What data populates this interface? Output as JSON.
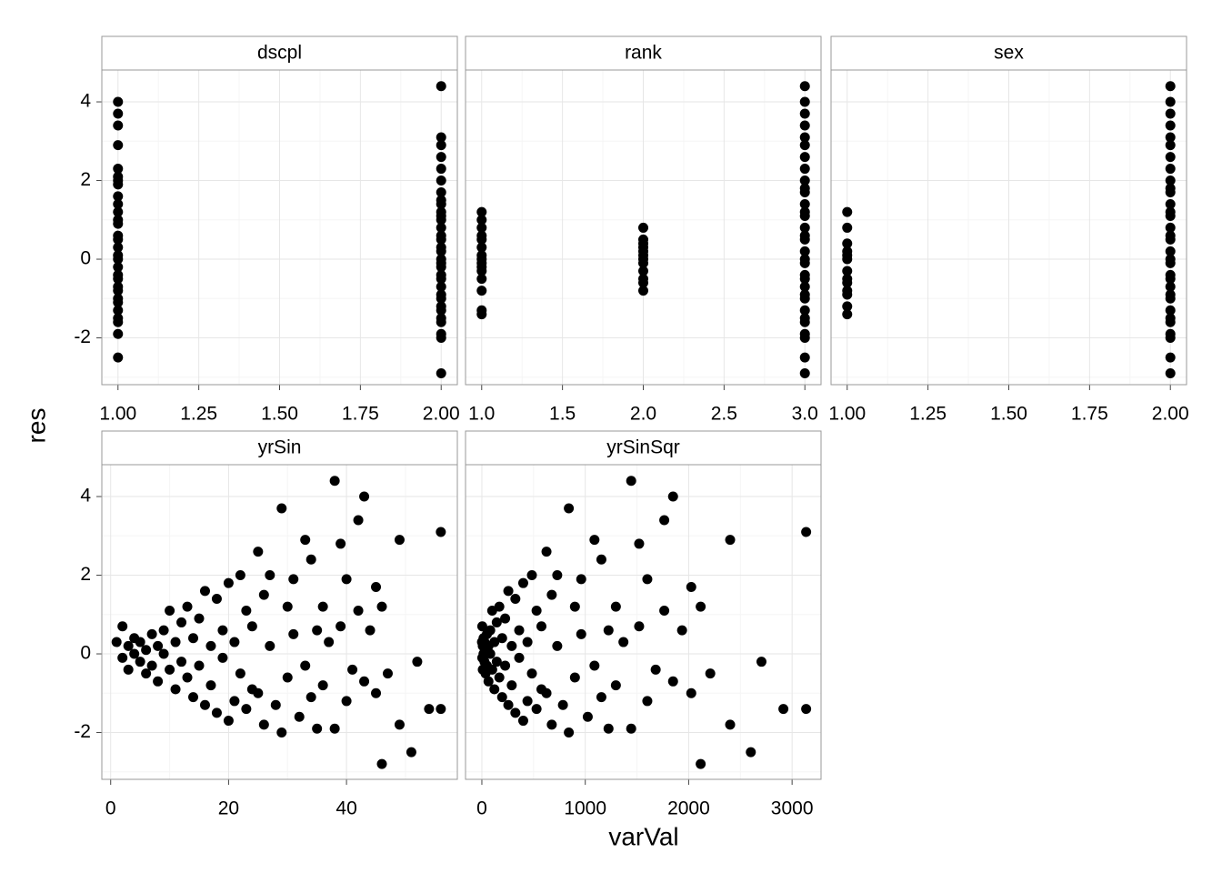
{
  "ylabel": "res",
  "xlabel": "varVal",
  "chart_data": [
    {
      "type": "scatter",
      "title": "dscpl",
      "color": "#000000",
      "grid": true,
      "xlim": [
        0.95,
        2.05
      ],
      "ylim": [
        -3.19,
        4.81
      ],
      "xticks": [
        {
          "value": 1,
          "label": "1.00"
        },
        1.25,
        {
          "value": 1.5,
          "label": "1.50"
        },
        1.75,
        {
          "value": 2,
          "label": "2.00"
        }
      ],
      "yticks": [
        -2,
        0,
        2,
        4
      ],
      "x": [
        1,
        1,
        1,
        1,
        1,
        1,
        1,
        1,
        1,
        1,
        1,
        1,
        1,
        1,
        1,
        1,
        1,
        1,
        1,
        1,
        1,
        1,
        1,
        1,
        1,
        1,
        1,
        1,
        1,
        1,
        2,
        2,
        2,
        2,
        2,
        2,
        2,
        2,
        2,
        2,
        2,
        2,
        2,
        2,
        2,
        2,
        2,
        2,
        2,
        2,
        2,
        2,
        2,
        2,
        2,
        2,
        2,
        2,
        2,
        2,
        2,
        2
      ],
      "y": [
        4.0,
        3.7,
        3.4,
        2.9,
        2.3,
        2.1,
        1.9,
        1.6,
        1.2,
        0.9,
        0.6,
        0.3,
        0,
        -0.2,
        -0.5,
        -0.8,
        -1.1,
        -1.3,
        -1.6,
        -1.9,
        -2.5,
        1.4,
        0.1,
        -0.4,
        -1.0,
        1.0,
        0.5,
        -0.7,
        2.0,
        -1.5,
        4.4,
        3.1,
        2.9,
        2.6,
        2.3,
        2.0,
        1.7,
        1.4,
        1.1,
        0.8,
        0.5,
        0.2,
        -0.1,
        -0.4,
        -0.7,
        -1.0,
        -1.3,
        -1.6,
        -1.9,
        -2.0,
        -2.9,
        1.2,
        0.3,
        -0.2,
        -0.9,
        1.5,
        0.6,
        -0.5,
        -1.5,
        0.0,
        -1.2,
        1.0
      ]
    },
    {
      "type": "scatter",
      "title": "rank",
      "color": "#000000",
      "grid": true,
      "xlim": [
        0.9,
        3.1
      ],
      "ylim": [
        -3.19,
        4.81
      ],
      "xticks": [
        {
          "value": 1,
          "label": "1.0"
        },
        1.5,
        {
          "value": 2,
          "label": "2.0"
        },
        2.5,
        {
          "value": 3,
          "label": "3.0"
        }
      ],
      "yticks": [
        -2,
        0,
        2,
        4
      ],
      "x": [
        1,
        1,
        1,
        1,
        1,
        1,
        1,
        1,
        1,
        1,
        1,
        1,
        1,
        1,
        1,
        2,
        2,
        2,
        2,
        2,
        2,
        2,
        2,
        2,
        2,
        2,
        2,
        3,
        3,
        3,
        3,
        3,
        3,
        3,
        3,
        3,
        3,
        3,
        3,
        3,
        3,
        3,
        3,
        3,
        3,
        3,
        3,
        3,
        3,
        3,
        3,
        3,
        3,
        3,
        3,
        3,
        3,
        3,
        3
      ],
      "y": [
        1.2,
        1.0,
        0.8,
        0.5,
        0.3,
        0.1,
        -0.1,
        -0.3,
        -0.5,
        -0.8,
        -1.3,
        -1.4,
        0.6,
        -0.2,
        0.0,
        0.8,
        0.5,
        0.3,
        0.1,
        -0.1,
        -0.3,
        -0.5,
        -0.8,
        0.2,
        -0.6,
        0.0,
        0.4,
        4.4,
        4.0,
        3.7,
        3.4,
        3.1,
        2.9,
        2.6,
        2.3,
        2.0,
        1.7,
        1.4,
        1.1,
        0.8,
        0.5,
        0.2,
        -0.1,
        -0.4,
        -0.7,
        -1.0,
        -1.3,
        -1.6,
        -1.9,
        -2.0,
        -2.5,
        -2.9,
        1.2,
        0.6,
        -0.5,
        -1.5,
        0.0,
        1.8,
        -0.9
      ]
    },
    {
      "type": "scatter",
      "title": "sex",
      "color": "#000000",
      "grid": true,
      "xlim": [
        0.95,
        2.05
      ],
      "ylim": [
        -3.19,
        4.81
      ],
      "xticks": [
        {
          "value": 1,
          "label": "1.00"
        },
        1.25,
        {
          "value": 1.5,
          "label": "1.50"
        },
        1.75,
        {
          "value": 2,
          "label": "2.00"
        }
      ],
      "yticks": [
        -2,
        0,
        2,
        4
      ],
      "x": [
        1,
        1,
        1,
        1,
        1,
        1,
        1,
        1,
        1,
        1,
        1,
        1,
        1,
        2,
        2,
        2,
        2,
        2,
        2,
        2,
        2,
        2,
        2,
        2,
        2,
        2,
        2,
        2,
        2,
        2,
        2,
        2,
        2,
        2,
        2,
        2,
        2,
        2,
        2,
        2,
        2,
        2,
        2,
        2,
        2
      ],
      "y": [
        1.2,
        0.8,
        0.4,
        0.2,
        0,
        -0.3,
        -0.5,
        -0.8,
        -0.9,
        -1.2,
        -1.4,
        0.1,
        -0.6,
        4.4,
        4.0,
        3.7,
        3.4,
        3.1,
        2.9,
        2.6,
        2.3,
        2.0,
        1.7,
        1.4,
        1.1,
        0.8,
        0.5,
        0.2,
        -0.1,
        -0.4,
        -0.7,
        -1.0,
        -1.3,
        -1.6,
        -1.9,
        -2.0,
        -2.5,
        -2.9,
        1.2,
        0.6,
        -0.5,
        -1.5,
        0.0,
        1.8,
        -0.9
      ]
    },
    {
      "type": "scatter",
      "title": "yrSin",
      "color": "#000000",
      "grid": true,
      "xlim": [
        -1.5,
        58.8
      ],
      "ylim": [
        -3.19,
        4.81
      ],
      "xticks": [
        0,
        20,
        40
      ],
      "yticks": [
        -2,
        0,
        2,
        4
      ],
      "x": [
        1,
        2,
        2,
        3,
        3,
        4,
        4,
        5,
        5,
        6,
        6,
        7,
        7,
        8,
        8,
        9,
        9,
        10,
        10,
        11,
        11,
        12,
        12,
        13,
        13,
        14,
        14,
        15,
        15,
        16,
        16,
        17,
        17,
        18,
        18,
        19,
        19,
        20,
        20,
        21,
        21,
        22,
        22,
        23,
        23,
        24,
        24,
        25,
        25,
        26,
        26,
        27,
        27,
        28,
        29,
        29,
        30,
        30,
        31,
        31,
        32,
        33,
        33,
        34,
        34,
        35,
        35,
        36,
        36,
        37,
        38,
        38,
        39,
        39,
        40,
        40,
        41,
        42,
        42,
        43,
        43,
        44,
        45,
        45,
        46,
        46,
        47,
        49,
        49,
        51,
        52,
        54,
        56,
        56
      ],
      "y": [
        0.3,
        -0.1,
        0.7,
        0.2,
        -0.4,
        0.4,
        0,
        -0.2,
        0.3,
        0.1,
        -0.5,
        0.5,
        -0.3,
        0.2,
        -0.7,
        0.6,
        0,
        1.1,
        -0.4,
        0.3,
        -0.9,
        0.8,
        -0.2,
        1.2,
        -0.6,
        0.4,
        -1.1,
        0.9,
        -0.3,
        1.6,
        -1.3,
        0.2,
        -0.8,
        1.4,
        -1.5,
        0.6,
        -0.1,
        1.8,
        -1.7,
        0.3,
        -1.2,
        2.0,
        -0.5,
        1.1,
        -1.4,
        0.7,
        -0.9,
        2.6,
        -1.0,
        1.5,
        -1.8,
        0.2,
        2.0,
        -1.3,
        3.7,
        -2.0,
        1.2,
        -0.6,
        0.5,
        1.9,
        -1.6,
        2.9,
        -0.3,
        2.4,
        -1.1,
        0.6,
        -1.9,
        1.2,
        -0.8,
        0.3,
        4.4,
        -1.9,
        2.8,
        0.7,
        1.9,
        -1.2,
        -0.4,
        3.4,
        1.1,
        4.0,
        -0.7,
        0.6,
        1.7,
        -1.0,
        -2.8,
        1.2,
        -0.5,
        2.9,
        -1.8,
        -2.5,
        -0.2,
        -1.4,
        3.1,
        -1.4
      ]
    },
    {
      "type": "scatter",
      "title": "yrSinSqr",
      "color": "#000000",
      "grid": true,
      "xlim": [
        -158,
        3280
      ],
      "ylim": [
        -3.19,
        4.81
      ],
      "xticks": [
        0,
        1000,
        2000,
        3000
      ],
      "yticks": [
        -2,
        0,
        2,
        4
      ],
      "x": [
        1,
        4,
        4,
        9,
        9,
        16,
        16,
        25,
        25,
        36,
        36,
        49,
        49,
        64,
        64,
        81,
        81,
        100,
        100,
        121,
        121,
        144,
        144,
        169,
        169,
        196,
        196,
        225,
        225,
        256,
        256,
        289,
        289,
        324,
        324,
        361,
        361,
        400,
        400,
        441,
        441,
        484,
        484,
        529,
        529,
        576,
        576,
        625,
        625,
        676,
        676,
        729,
        729,
        784,
        841,
        841,
        900,
        900,
        961,
        961,
        1024,
        1089,
        1089,
        1156,
        1156,
        1225,
        1225,
        1296,
        1296,
        1369,
        1444,
        1444,
        1521,
        1521,
        1600,
        1600,
        1681,
        1764,
        1764,
        1849,
        1849,
        1936,
        2025,
        2025,
        2116,
        2116,
        2209,
        2401,
        2401,
        2601,
        2704,
        2916,
        3136,
        3136
      ],
      "y": [
        0.3,
        -0.1,
        0.7,
        0.2,
        -0.4,
        0.4,
        0,
        -0.2,
        0.3,
        0.1,
        -0.5,
        0.5,
        -0.3,
        0.2,
        -0.7,
        0.6,
        0,
        1.1,
        -0.4,
        0.3,
        -0.9,
        0.8,
        -0.2,
        1.2,
        -0.6,
        0.4,
        -1.1,
        0.9,
        -0.3,
        1.6,
        -1.3,
        0.2,
        -0.8,
        1.4,
        -1.5,
        0.6,
        -0.1,
        1.8,
        -1.7,
        0.3,
        -1.2,
        2.0,
        -0.5,
        1.1,
        -1.4,
        0.7,
        -0.9,
        2.6,
        -1.0,
        1.5,
        -1.8,
        0.2,
        2.0,
        -1.3,
        3.7,
        -2.0,
        1.2,
        -0.6,
        0.5,
        1.9,
        -1.6,
        2.9,
        -0.3,
        2.4,
        -1.1,
        0.6,
        -1.9,
        1.2,
        -0.8,
        0.3,
        4.4,
        -1.9,
        2.8,
        0.7,
        1.9,
        -1.2,
        -0.4,
        3.4,
        1.1,
        4.0,
        -0.7,
        0.6,
        1.7,
        -1.0,
        -2.8,
        1.2,
        -0.5,
        2.9,
        -1.8,
        -2.5,
        -0.2,
        -1.4,
        3.1,
        -1.4
      ]
    }
  ]
}
